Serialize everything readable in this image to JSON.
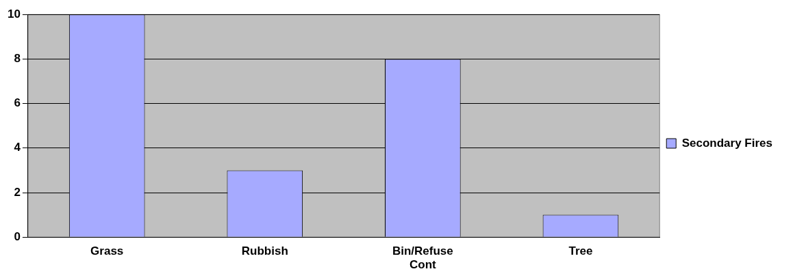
{
  "chart_data": {
    "type": "bar",
    "categories": [
      "Grass",
      "Rubbish",
      "Bin/Refuse Cont",
      "Tree"
    ],
    "series": [
      {
        "name": "Secondary Fires",
        "color": "#a6aaff",
        "values": [
          10,
          3,
          8,
          1
        ]
      }
    ],
    "ylim": [
      0,
      10
    ],
    "yticks": [
      0,
      2,
      4,
      6,
      8,
      10
    ],
    "grid": "y",
    "legend": "right"
  }
}
